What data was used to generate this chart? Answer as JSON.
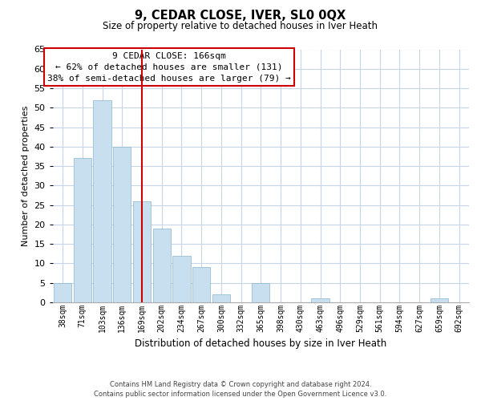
{
  "title": "9, CEDAR CLOSE, IVER, SL0 0QX",
  "subtitle": "Size of property relative to detached houses in Iver Heath",
  "xlabel": "Distribution of detached houses by size in Iver Heath",
  "ylabel": "Number of detached properties",
  "bar_labels": [
    "38sqm",
    "71sqm",
    "103sqm",
    "136sqm",
    "169sqm",
    "202sqm",
    "234sqm",
    "267sqm",
    "300sqm",
    "332sqm",
    "365sqm",
    "398sqm",
    "430sqm",
    "463sqm",
    "496sqm",
    "529sqm",
    "561sqm",
    "594sqm",
    "627sqm",
    "659sqm",
    "692sqm"
  ],
  "bar_values": [
    5,
    37,
    52,
    40,
    26,
    19,
    12,
    9,
    2,
    0,
    5,
    0,
    0,
    1,
    0,
    0,
    0,
    0,
    0,
    1,
    0
  ],
  "bar_color": "#c8dff0",
  "bar_edge_color": "#8ab4d0",
  "vline_x_index": 4,
  "vline_color": "#cc0000",
  "ylim": [
    0,
    65
  ],
  "yticks": [
    0,
    5,
    10,
    15,
    20,
    25,
    30,
    35,
    40,
    45,
    50,
    55,
    60,
    65
  ],
  "annotation_title": "9 CEDAR CLOSE: 166sqm",
  "annotation_line1": "← 62% of detached houses are smaller (131)",
  "annotation_line2": "38% of semi-detached houses are larger (79) →",
  "annotation_box_color": "#ffffff",
  "annotation_box_edge": "#cc0000",
  "footer_line1": "Contains HM Land Registry data © Crown copyright and database right 2024.",
  "footer_line2": "Contains public sector information licensed under the Open Government Licence v3.0.",
  "bg_color": "#ffffff",
  "grid_color": "#c8d4e8"
}
